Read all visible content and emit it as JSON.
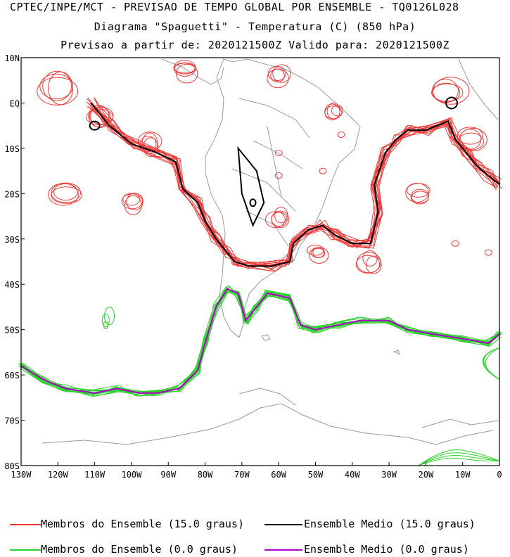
{
  "titles": {
    "line1": "CPTEC/INPE/MCT - PREVISAO DE TEMPO GLOBAL POR ENSEMBLE - TQ0126L028",
    "line2": "Diagrama \"Spaguetti\" - Temperatura (C) (850 hPa)",
    "line3": "Previsao a partir de: 2020121500Z  Valido para: 2020121500Z"
  },
  "colors": {
    "member_15": "#ee3b3b",
    "mean_15": "#000000",
    "member_0": "#2fd22f",
    "mean_0": "#b000c8",
    "coast": "#9a9a9a"
  },
  "chart_data": {
    "type": "contour-spaghetti",
    "title": "Diagrama \"Spaguetti\" - Temperatura (C) (850 hPa)",
    "x_axis": {
      "range": [
        -130,
        0
      ],
      "ticks": [
        -130,
        -120,
        -110,
        -100,
        -90,
        -80,
        -70,
        -60,
        -50,
        -40,
        -30,
        -20,
        -10,
        0
      ],
      "tick_labels": [
        "130W",
        "120W",
        "110W",
        "100W",
        "90W",
        "80W",
        "70W",
        "60W",
        "50W",
        "40W",
        "30W",
        "20W",
        "10W",
        "0"
      ]
    },
    "y_axis": {
      "range": [
        -80,
        10
      ],
      "ticks": [
        10,
        0,
        -10,
        -20,
        -30,
        -40,
        -50,
        -60,
        -70,
        -80
      ],
      "tick_labels": [
        "10N",
        "EQ",
        "10S",
        "20S",
        "30S",
        "40S",
        "50S",
        "60S",
        "70S",
        "80S"
      ]
    },
    "series": [
      {
        "name": "Ensemble Medio (15.0 graus)",
        "level": 15.0,
        "points": [
          [
            -111,
            0
          ],
          [
            -106,
            -5
          ],
          [
            -100,
            -9
          ],
          [
            -93,
            -11
          ],
          [
            -88,
            -13
          ],
          [
            -86,
            -19
          ],
          [
            -82,
            -22
          ],
          [
            -80,
            -26
          ],
          [
            -77,
            -30
          ],
          [
            -74,
            -33
          ],
          [
            -72,
            -35
          ],
          [
            -68,
            -36
          ],
          [
            -62,
            -36
          ],
          [
            -57,
            -35
          ],
          [
            -56,
            -31
          ],
          [
            -52,
            -28
          ],
          [
            -48,
            -27
          ],
          [
            -45,
            -29
          ],
          [
            -40,
            -31
          ],
          [
            -35,
            -31
          ],
          [
            -33,
            -24
          ],
          [
            -34,
            -18
          ],
          [
            -31,
            -11
          ],
          [
            -28,
            -8
          ],
          [
            -25,
            -6
          ],
          [
            -20,
            -6
          ],
          [
            -14,
            -4
          ],
          [
            -12,
            -8
          ],
          [
            -9,
            -11
          ],
          [
            -6,
            -14
          ],
          [
            -3,
            -16
          ],
          [
            0,
            -18
          ]
        ]
      },
      {
        "name": "Ensemble Medio (0.0 graus)",
        "level": 0.0,
        "points": [
          [
            -130,
            -58
          ],
          [
            -124,
            -61
          ],
          [
            -118,
            -63
          ],
          [
            -110,
            -64
          ],
          [
            -104,
            -63
          ],
          [
            -98,
            -64
          ],
          [
            -93,
            -64
          ],
          [
            -87,
            -63
          ],
          [
            -82,
            -59
          ],
          [
            -80,
            -53
          ],
          [
            -77,
            -45
          ],
          [
            -74,
            -41
          ],
          [
            -71,
            -42
          ],
          [
            -69,
            -48
          ],
          [
            -66,
            -45
          ],
          [
            -63,
            -42
          ],
          [
            -57,
            -43
          ],
          [
            -54,
            -49
          ],
          [
            -50,
            -50
          ],
          [
            -44,
            -49
          ],
          [
            -38,
            -48
          ],
          [
            -30,
            -48
          ],
          [
            -25,
            -50
          ],
          [
            -18,
            -51
          ],
          [
            -10,
            -52
          ],
          [
            -3,
            -53
          ],
          [
            0,
            -51
          ]
        ]
      },
      {
        "name": "Membros do Ensemble (15.0 graus)",
        "level": 15.0,
        "note": "many overlapping member contours around the 15 C line"
      },
      {
        "name": "Membros do Ensemble (0.0 graus)",
        "level": 0.0,
        "note": "many overlapping member contours around the 0 C line"
      }
    ],
    "legend": [
      {
        "label": "Membros do Ensemble (15.0 graus)",
        "color": "#ee3b3b"
      },
      {
        "label": "Ensemble Medio (15.0 graus)",
        "color": "#000000"
      },
      {
        "label": "Membros do Ensemble (0.0 graus)",
        "color": "#2fd22f"
      },
      {
        "label": "Ensemble Medio (0.0 graus)",
        "color": "#b000c8"
      }
    ]
  }
}
